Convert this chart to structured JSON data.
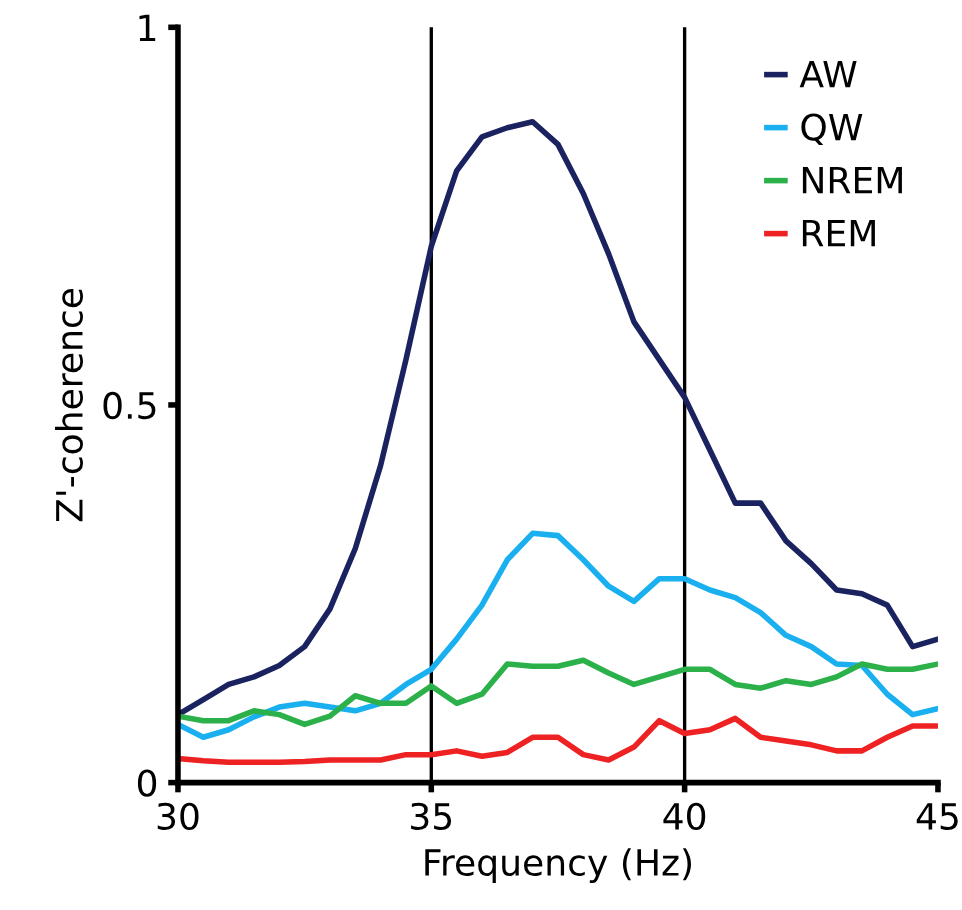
{
  "chart_data": {
    "type": "line",
    "xlabel": "Frequency (Hz)",
    "ylabel": "Z'-coherence",
    "x": [
      30,
      30.5,
      31,
      31.5,
      32,
      32.5,
      33,
      33.5,
      34,
      34.5,
      35,
      35.5,
      36,
      36.5,
      37,
      37.5,
      38,
      38.5,
      39,
      39.5,
      40,
      40.5,
      41,
      41.5,
      42,
      42.5,
      43,
      43.5,
      44,
      44.5,
      45
    ],
    "series": [
      {
        "name": "AW",
        "color": "#1a2360",
        "values": [
          0.09,
          0.11,
          0.13,
          0.14,
          0.155,
          0.18,
          0.23,
          0.31,
          0.42,
          0.56,
          0.71,
          0.81,
          0.855,
          0.867,
          0.875,
          0.845,
          0.78,
          0.7,
          0.61,
          0.56,
          0.51,
          0.44,
          0.37,
          0.37,
          0.32,
          0.29,
          0.255,
          0.25,
          0.235,
          0.18,
          0.19
        ]
      },
      {
        "name": "QW",
        "color": "#1ab0ef",
        "values": [
          0.077,
          0.06,
          0.07,
          0.087,
          0.1,
          0.105,
          0.1,
          0.095,
          0.105,
          0.13,
          0.15,
          0.19,
          0.235,
          0.295,
          0.33,
          0.327,
          0.295,
          0.26,
          0.24,
          0.27,
          0.27,
          0.255,
          0.245,
          0.225,
          0.195,
          0.18,
          0.157,
          0.155,
          0.117,
          0.09,
          0.098
        ]
      },
      {
        "name": "NREM",
        "color": "#2bb04a",
        "values": [
          0.088,
          0.082,
          0.082,
          0.095,
          0.09,
          0.077,
          0.088,
          0.115,
          0.105,
          0.105,
          0.128,
          0.105,
          0.117,
          0.157,
          0.154,
          0.154,
          0.162,
          0.145,
          0.13,
          0.14,
          0.15,
          0.15,
          0.13,
          0.125,
          0.135,
          0.13,
          0.14,
          0.157,
          0.15,
          0.15,
          0.157
        ]
      },
      {
        "name": "REM",
        "color": "#ee2222",
        "values": [
          0.032,
          0.029,
          0.027,
          0.027,
          0.027,
          0.028,
          0.03,
          0.03,
          0.03,
          0.037,
          0.037,
          0.042,
          0.035,
          0.04,
          0.06,
          0.06,
          0.037,
          0.03,
          0.047,
          0.082,
          0.065,
          0.07,
          0.085,
          0.06,
          0.055,
          0.05,
          0.042,
          0.042,
          0.06,
          0.075,
          0.075
        ]
      }
    ],
    "xlim": [
      30,
      45
    ],
    "xticks": [
      30,
      35,
      40,
      45
    ],
    "ylim": [
      0,
      1
    ],
    "yticks": [
      0,
      0.5,
      1
    ],
    "ref_lines": [
      {
        "axis": "x",
        "value": 35,
        "color": "#000000"
      },
      {
        "axis": "x",
        "value": 40,
        "color": "#000000"
      }
    ],
    "legend": "top right",
    "grid": false,
    "marker": "none",
    "line_style": "solid"
  }
}
